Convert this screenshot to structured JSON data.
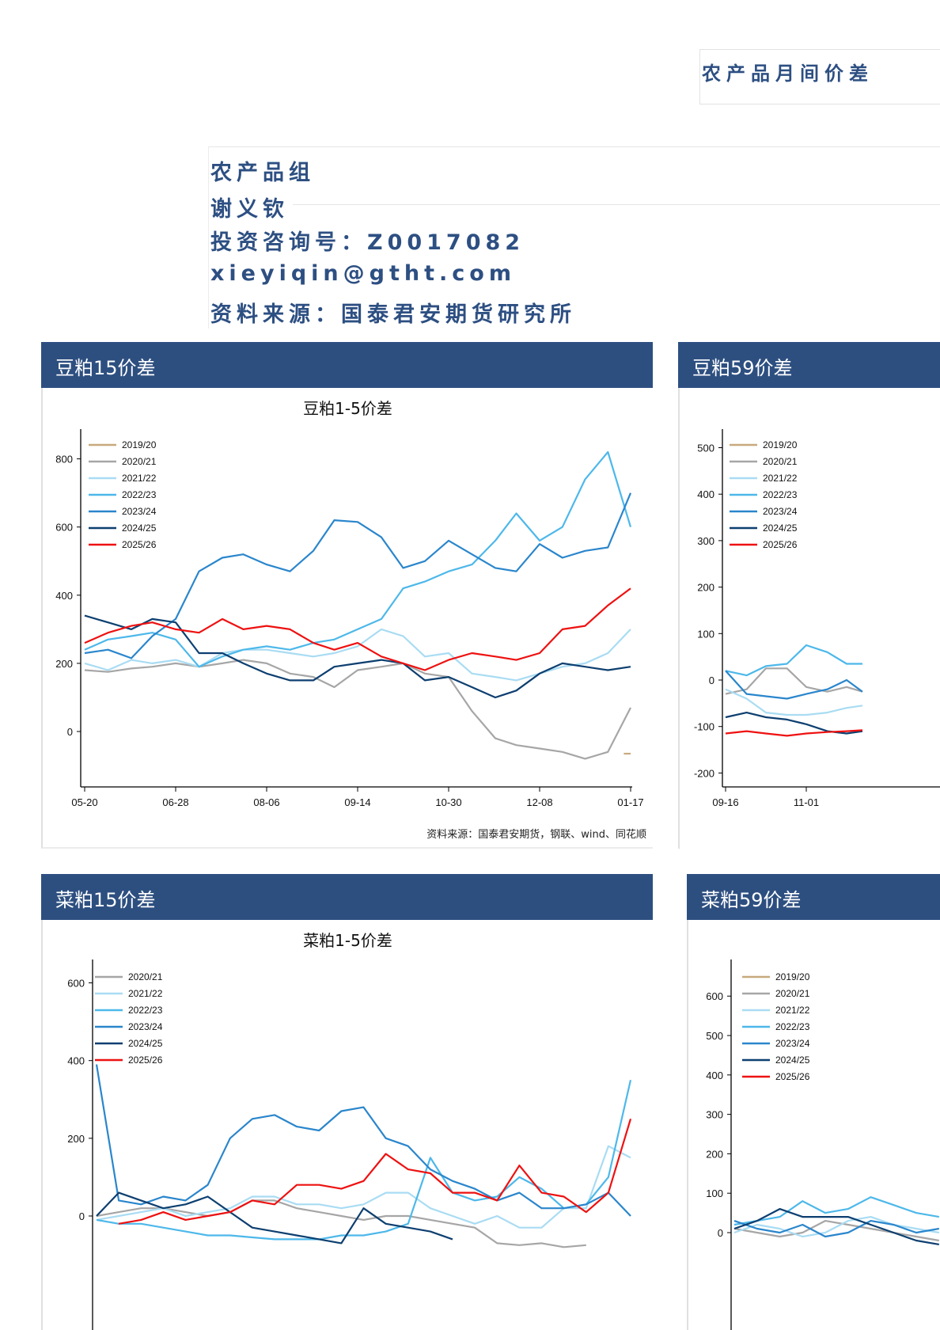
{
  "document": {
    "title": "农产品月间价差",
    "info": [
      "农产品组",
      "谢义钦",
      "投资咨询号：Z0017082",
      "xieyiqin@gtht.com",
      "资料来源：国泰君安期货研究所"
    ]
  },
  "colors": {
    "panel_header": "#2d4f80",
    "accent_text": "#2d4f82",
    "2019/20": "#c8a97e",
    "2020/21": "#a6a6a6",
    "2021/22": "#a9dcf3",
    "2022/23": "#4db8ea",
    "2023/24": "#2a86cc",
    "2024/25": "#0d3f70",
    "2025/26": "#ee1111"
  },
  "panels": [
    {
      "header": "豆粕15价差",
      "chart_title": "豆粕1-5价差",
      "source": "资料来源：国泰君安期货，钢联、wind、同花顺"
    },
    {
      "header": "豆粕59价差",
      "chart_title": "",
      "source": ""
    },
    {
      "header": "菜粕15价差",
      "chart_title": "菜粕1-5价差",
      "source": ""
    },
    {
      "header": "菜粕59价差",
      "chart_title": "",
      "source": ""
    }
  ],
  "chart_data": [
    {
      "type": "line",
      "title": "豆粕1-5价差",
      "xticks": [
        "05-20",
        "06-28",
        "08-06",
        "09-14",
        "10-30",
        "12-08",
        "01-17"
      ],
      "yticks": [
        0,
        200,
        400,
        600,
        800
      ],
      "ylim": [
        -160,
        890
      ],
      "grid": false,
      "legend": "top-left",
      "x": [
        "05-20",
        "05-30",
        "06-09",
        "06-18",
        "06-28",
        "07-08",
        "07-18",
        "07-27",
        "08-06",
        "08-16",
        "08-26",
        "09-04",
        "09-14",
        "09-26",
        "10-07",
        "10-18",
        "10-30",
        "11-09",
        "11-19",
        "11-28",
        "12-08",
        "12-18",
        "12-28",
        "01-07",
        "01-17"
      ],
      "series": [
        {
          "name": "2019/20",
          "x": [
            "01-14",
            "01-17"
          ],
          "values": [
            -65,
            -65
          ]
        },
        {
          "name": "2020/21",
          "values": [
            180,
            175,
            185,
            190,
            200,
            190,
            200,
            210,
            200,
            170,
            160,
            130,
            180,
            190,
            200,
            170,
            160,
            60,
            -20,
            -40,
            -50,
            -60,
            -80,
            -60,
            70
          ]
        },
        {
          "name": "2021/22",
          "values": [
            200,
            180,
            210,
            200,
            210,
            190,
            230,
            240,
            240,
            230,
            220,
            230,
            250,
            300,
            280,
            220,
            230,
            170,
            160,
            150,
            170,
            190,
            200,
            230,
            300
          ]
        },
        {
          "name": "2022/23",
          "values": [
            240,
            270,
            280,
            290,
            270,
            190,
            220,
            240,
            250,
            240,
            260,
            270,
            300,
            330,
            420,
            440,
            470,
            490,
            560,
            640,
            560,
            600,
            740,
            820,
            600
          ]
        },
        {
          "name": "2023/24",
          "values": [
            230,
            240,
            215,
            280,
            330,
            470,
            510,
            520,
            490,
            470,
            530,
            620,
            615,
            570,
            480,
            500,
            560,
            520,
            480,
            470,
            550,
            510,
            530,
            540,
            700
          ]
        },
        {
          "name": "2024/25",
          "values": [
            340,
            320,
            300,
            330,
            320,
            230,
            230,
            200,
            170,
            150,
            150,
            190,
            200,
            210,
            200,
            150,
            160,
            130,
            100,
            120,
            170,
            200,
            190,
            180,
            190
          ]
        },
        {
          "name": "2025/26",
          "values": [
            260,
            290,
            310,
            320,
            300,
            290,
            330,
            300,
            310,
            300,
            260,
            240,
            260,
            220,
            200,
            180,
            210,
            230,
            220,
            210,
            230,
            300,
            310,
            370,
            420
          ]
        }
      ]
    },
    {
      "type": "line",
      "title": "",
      "xticks": [
        "09-16",
        "11-01"
      ],
      "yticks": [
        -200,
        -100,
        0,
        100,
        200,
        300,
        400,
        500
      ],
      "ylim": [
        -230,
        540
      ],
      "grid": false,
      "legend": "top-left",
      "x": [
        "09-16",
        "09-28",
        "10-09",
        "10-21",
        "11-01",
        "11-13",
        "11-24",
        "12-03"
      ],
      "series": [
        {
          "name": "2019/20",
          "values": [
            null,
            null,
            null,
            null,
            null,
            null,
            null,
            null
          ]
        },
        {
          "name": "2020/21",
          "values": [
            -30,
            -20,
            25,
            25,
            -15,
            -25,
            -15,
            -25
          ]
        },
        {
          "name": "2021/22",
          "values": [
            -20,
            -40,
            -70,
            -75,
            -75,
            -70,
            -60,
            -55
          ]
        },
        {
          "name": "2022/23",
          "values": [
            20,
            10,
            30,
            35,
            75,
            60,
            35,
            35
          ]
        },
        {
          "name": "2023/24",
          "values": [
            20,
            -30,
            -35,
            -40,
            -30,
            -20,
            0,
            -25
          ]
        },
        {
          "name": "2024/25",
          "values": [
            -80,
            -70,
            -80,
            -85,
            -95,
            -110,
            -115,
            -110
          ]
        },
        {
          "name": "2025/26",
          "values": [
            -115,
            -110,
            -115,
            -120,
            -115,
            -112,
            -110,
            -108
          ]
        }
      ]
    },
    {
      "type": "line",
      "title": "菜粕1-5价差",
      "xticks": [],
      "yticks": [
        0,
        200,
        400,
        600
      ],
      "ylim": [
        -320,
        660
      ],
      "grid": false,
      "legend": "top-left",
      "series": [
        {
          "name": "2020/21",
          "values": [
            0,
            10,
            20,
            20,
            10,
            0,
            10,
            40,
            40,
            20,
            10,
            0,
            -10,
            0,
            0,
            -10,
            -20,
            -30,
            -70,
            -75,
            -70,
            -80,
            -75,
            null,
            null
          ]
        },
        {
          "name": "2021/22",
          "values": [
            -10,
            0,
            10,
            20,
            0,
            10,
            20,
            50,
            50,
            30,
            30,
            20,
            30,
            60,
            60,
            20,
            0,
            -20,
            0,
            -30,
            -30,
            20,
            20,
            180,
            150
          ]
        },
        {
          "name": "2022/23",
          "values": [
            -10,
            -20,
            -20,
            -30,
            -40,
            -50,
            -50,
            -55,
            -60,
            -60,
            -60,
            -50,
            -50,
            -40,
            -20,
            150,
            60,
            40,
            50,
            100,
            70,
            20,
            30,
            100,
            350
          ]
        },
        {
          "name": "2023/24",
          "values": [
            390,
            40,
            30,
            50,
            40,
            80,
            200,
            250,
            260,
            230,
            220,
            270,
            280,
            200,
            180,
            120,
            90,
            70,
            40,
            60,
            20,
            20,
            30,
            60,
            0
          ]
        },
        {
          "name": "2024/25",
          "values": [
            0,
            60,
            40,
            20,
            30,
            50,
            10,
            -30,
            -40,
            -50,
            -60,
            -70,
            20,
            -20,
            -30,
            -40,
            -60,
            null,
            null,
            null,
            null,
            null,
            null,
            null,
            null
          ]
        },
        {
          "name": "2025/26",
          "values": [
            null,
            -20,
            -10,
            10,
            -10,
            0,
            10,
            40,
            30,
            80,
            80,
            70,
            90,
            160,
            120,
            110,
            60,
            60,
            40,
            130,
            60,
            50,
            10,
            60,
            250
          ]
        }
      ]
    },
    {
      "type": "line",
      "title": "",
      "xticks": [],
      "yticks": [
        0,
        100,
        200,
        300,
        400,
        500,
        600
      ],
      "ylim": [
        -280,
        692
      ],
      "grid": false,
      "legend": "top-left",
      "series": [
        {
          "name": "2019/20",
          "values": [
            null,
            null,
            null,
            null,
            null,
            null,
            null,
            null,
            null,
            null
          ]
        },
        {
          "name": "2020/21",
          "values": [
            10,
            0,
            -10,
            0,
            30,
            20,
            10,
            0,
            -10,
            -20
          ]
        },
        {
          "name": "2021/22",
          "values": [
            0,
            20,
            10,
            -10,
            0,
            30,
            40,
            20,
            10,
            0
          ]
        },
        {
          "name": "2022/23",
          "values": [
            20,
            30,
            40,
            80,
            50,
            60,
            90,
            70,
            50,
            40
          ]
        },
        {
          "name": "2023/24",
          "values": [
            30,
            10,
            0,
            20,
            -10,
            0,
            30,
            20,
            0,
            10
          ]
        },
        {
          "name": "2024/25",
          "values": [
            10,
            30,
            60,
            40,
            40,
            40,
            20,
            0,
            -20,
            -30
          ]
        },
        {
          "name": "2025/26",
          "values": [
            null,
            null,
            null,
            null,
            null,
            null,
            null,
            null,
            null,
            null
          ]
        }
      ]
    }
  ]
}
